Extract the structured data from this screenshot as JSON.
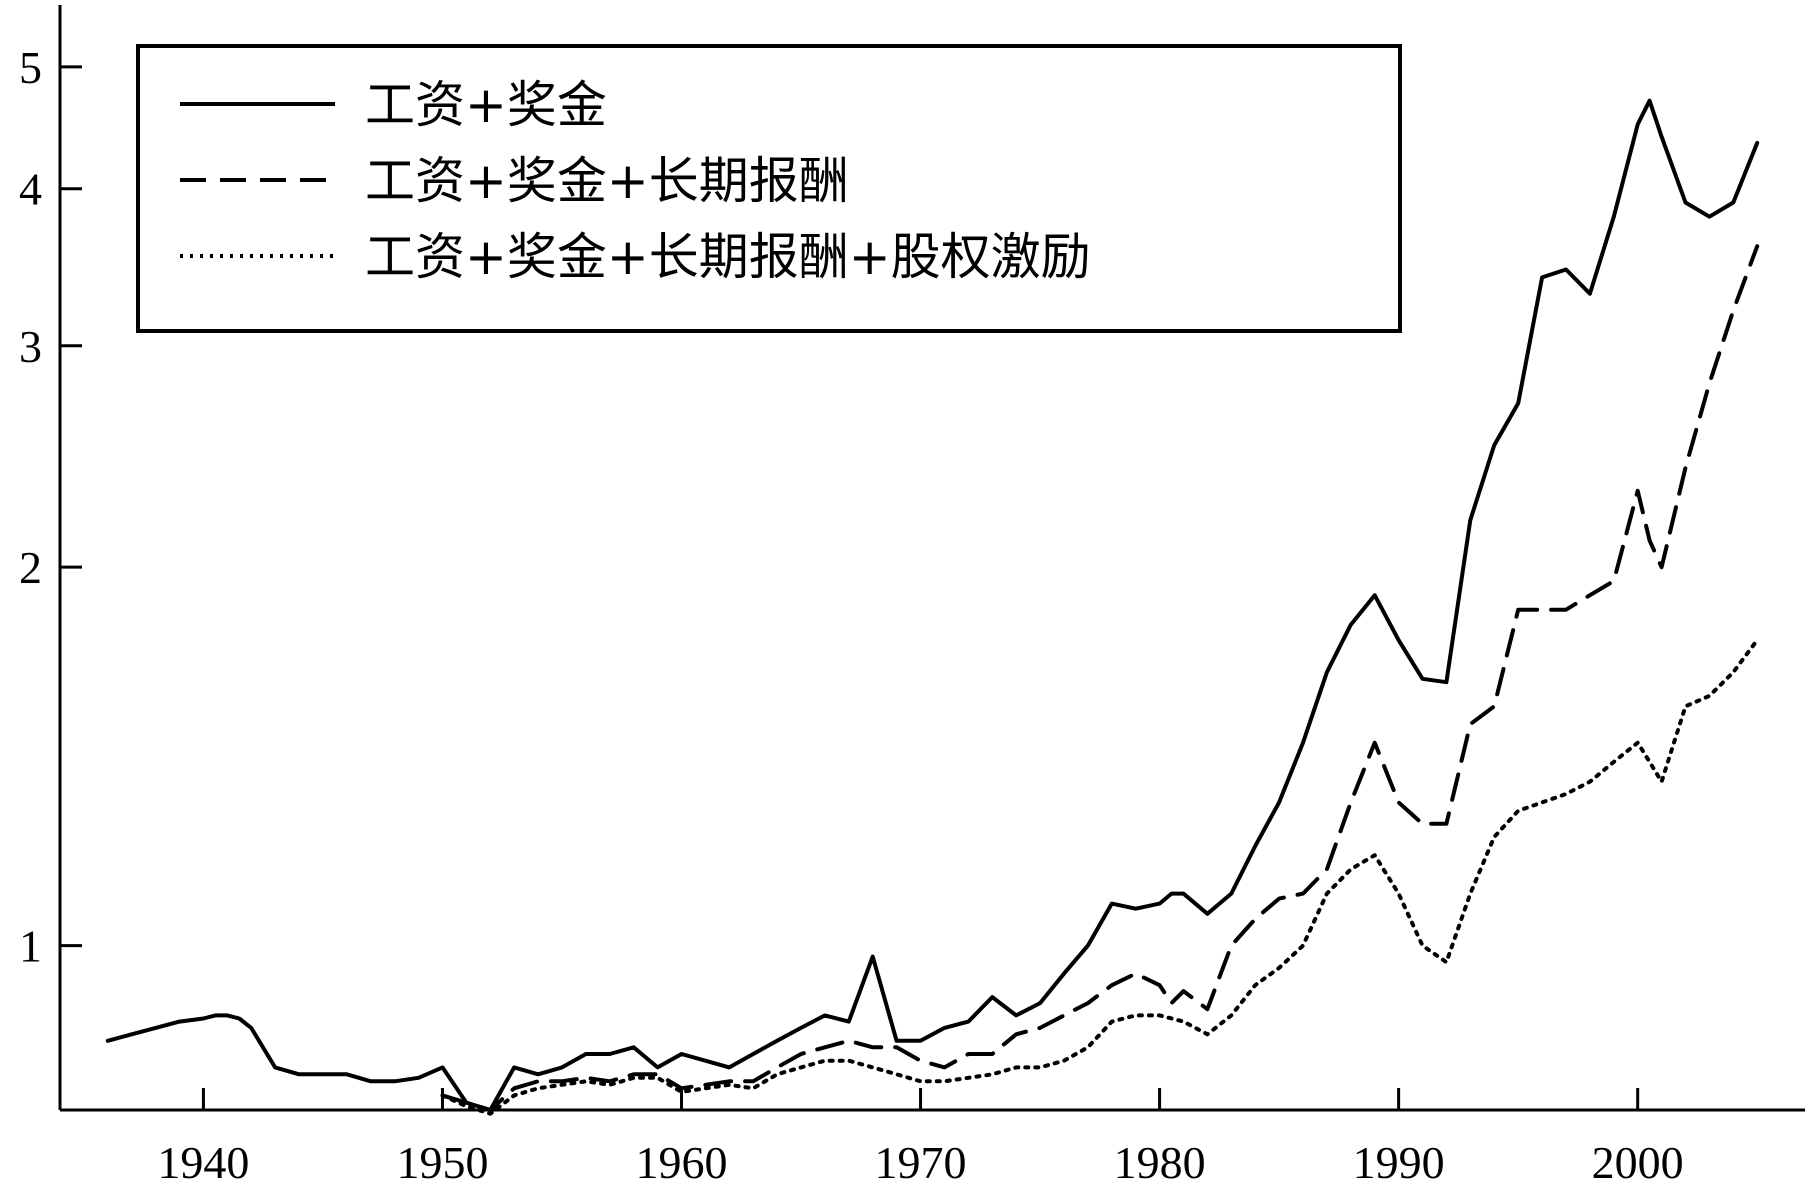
{
  "chart_data": {
    "type": "line",
    "title": "",
    "xlabel": "",
    "ylabel": "",
    "y_scale": "log",
    "xlim": [
      1934,
      2007
    ],
    "ylim": [
      0.74,
      5.6
    ],
    "x_ticks": [
      1940,
      1950,
      1960,
      1970,
      1980,
      1990,
      2000
    ],
    "y_ticks": [
      1,
      2,
      3,
      4,
      5
    ],
    "grid": false,
    "legend_position": "top-left",
    "series": [
      {
        "name": "工资+奖金",
        "style": "solid",
        "x": [
          1936,
          1937,
          1938,
          1939,
          1940,
          1940.5,
          1941,
          1941.5,
          1942,
          1943,
          1944,
          1945,
          1946,
          1947,
          1948,
          1949,
          1950,
          1951,
          1952,
          1953,
          1954,
          1955,
          1956,
          1957,
          1958,
          1959,
          1960,
          1961,
          1962,
          1963,
          1964,
          1965,
          1966,
          1967,
          1968,
          1969,
          1970,
          1971,
          1972,
          1973,
          1974,
          1975,
          1976,
          1977,
          1978,
          1979,
          1980,
          1980.5,
          1981,
          1982,
          1983,
          1984,
          1985,
          1986,
          1987,
          1988,
          1989,
          1990,
          1991,
          1992,
          1993,
          1994,
          1995,
          1996,
          1997,
          1998,
          1999,
          2000,
          2000.5,
          2001,
          2002,
          2003,
          2004,
          2005
        ],
        "y": [
          0.84,
          0.85,
          0.86,
          0.87,
          0.875,
          0.88,
          0.88,
          0.875,
          0.86,
          0.8,
          0.79,
          0.79,
          0.79,
          0.78,
          0.78,
          0.785,
          0.8,
          0.75,
          0.74,
          0.8,
          0.79,
          0.8,
          0.82,
          0.82,
          0.83,
          0.8,
          0.82,
          0.81,
          0.8,
          0.82,
          0.84,
          0.86,
          0.88,
          0.87,
          0.98,
          0.84,
          0.84,
          0.86,
          0.87,
          0.91,
          0.88,
          0.9,
          0.95,
          1.0,
          1.08,
          1.07,
          1.08,
          1.1,
          1.1,
          1.06,
          1.1,
          1.2,
          1.3,
          1.45,
          1.65,
          1.8,
          1.9,
          1.75,
          1.63,
          1.62,
          2.18,
          2.5,
          2.7,
          3.4,
          3.45,
          3.3,
          3.8,
          4.5,
          4.7,
          4.4,
          3.9,
          3.8,
          3.9,
          4.35
        ]
      },
      {
        "name": "工资+奖金+长期报酬",
        "style": "dashed",
        "x": [
          1950,
          1951,
          1952,
          1953,
          1954,
          1955,
          1956,
          1957,
          1958,
          1959,
          1960,
          1961,
          1962,
          1963,
          1964,
          1965,
          1966,
          1967,
          1968,
          1969,
          1970,
          1971,
          1972,
          1973,
          1974,
          1975,
          1976,
          1977,
          1978,
          1979,
          1980,
          1980.5,
          1981,
          1982,
          1983,
          1984,
          1985,
          1986,
          1987,
          1988,
          1989,
          1990,
          1991,
          1992,
          1993,
          1994,
          1995,
          1996,
          1997,
          1998,
          1999,
          2000,
          2000.5,
          2001,
          2002,
          2003,
          2004,
          2005
        ],
        "y": [
          0.76,
          0.75,
          0.74,
          0.77,
          0.78,
          0.78,
          0.785,
          0.78,
          0.79,
          0.79,
          0.77,
          0.775,
          0.78,
          0.78,
          0.8,
          0.82,
          0.83,
          0.84,
          0.83,
          0.83,
          0.81,
          0.8,
          0.82,
          0.82,
          0.85,
          0.86,
          0.88,
          0.9,
          0.93,
          0.95,
          0.93,
          0.9,
          0.92,
          0.89,
          1.0,
          1.05,
          1.09,
          1.1,
          1.15,
          1.3,
          1.45,
          1.3,
          1.25,
          1.25,
          1.5,
          1.55,
          1.85,
          1.85,
          1.85,
          1.9,
          1.95,
          2.3,
          2.1,
          2.0,
          2.4,
          2.8,
          3.2,
          3.6
        ]
      },
      {
        "name": "工资+奖金+长期报酬+股权激励",
        "style": "dotted",
        "x": [
          1950,
          1951,
          1952,
          1953,
          1954,
          1955,
          1956,
          1957,
          1958,
          1959,
          1960,
          1961,
          1962,
          1963,
          1964,
          1965,
          1966,
          1967,
          1968,
          1969,
          1970,
          1971,
          1972,
          1973,
          1974,
          1975,
          1976,
          1977,
          1978,
          1979,
          1980,
          1981,
          1982,
          1983,
          1984,
          1985,
          1986,
          1987,
          1988,
          1989,
          1990,
          1991,
          1992,
          1993,
          1994,
          1995,
          1996,
          1997,
          1998,
          1999,
          2000,
          2000.5,
          2001,
          2002,
          2003,
          2004,
          2005
        ],
        "y": [
          0.76,
          0.745,
          0.735,
          0.76,
          0.77,
          0.775,
          0.78,
          0.775,
          0.785,
          0.785,
          0.765,
          0.77,
          0.775,
          0.77,
          0.79,
          0.8,
          0.81,
          0.81,
          0.8,
          0.79,
          0.78,
          0.78,
          0.785,
          0.79,
          0.8,
          0.8,
          0.81,
          0.83,
          0.87,
          0.88,
          0.88,
          0.87,
          0.85,
          0.88,
          0.93,
          0.96,
          1.0,
          1.1,
          1.15,
          1.18,
          1.1,
          1.0,
          0.97,
          1.1,
          1.22,
          1.28,
          1.3,
          1.32,
          1.35,
          1.4,
          1.45,
          1.4,
          1.35,
          1.55,
          1.58,
          1.65,
          1.75
        ]
      }
    ]
  }
}
